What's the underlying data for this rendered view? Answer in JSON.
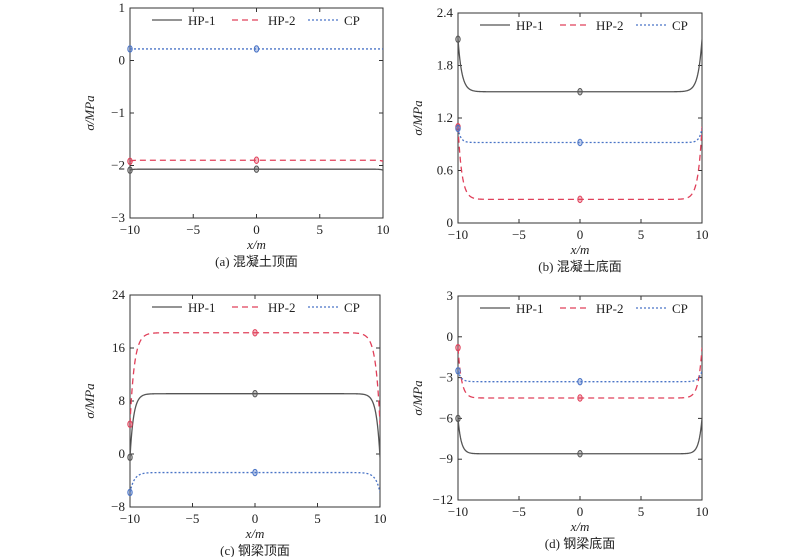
{
  "chart_data": [
    {
      "type": "line",
      "title": "(a) 混凝土顶面",
      "xlabel": "x/m",
      "ylabel": "σ/MPa",
      "xlim": [
        -10,
        10
      ],
      "ylim": [
        -3,
        1
      ],
      "xticks": [
        -10,
        -5,
        0,
        5,
        10
      ],
      "yticks": [
        -3,
        -2,
        -1,
        0,
        1
      ],
      "xtick_labels": [
        "−10",
        "−5",
        "0",
        "5",
        "10"
      ],
      "ytick_labels": [
        "−3",
        "−2",
        "−1",
        "0",
        "1"
      ],
      "legend": "top, horizontal",
      "series": [
        {
          "name": "HP-1",
          "style": "solid",
          "color": "#555555",
          "center": -2.07,
          "end": -2.09,
          "edge_rise_width": 0.6
        },
        {
          "name": "HP-2",
          "style": "dashed",
          "color": "#e0405a",
          "center": -1.9,
          "end": -1.92,
          "edge_rise_width": 0.6
        },
        {
          "name": "CP",
          "style": "dotted",
          "color": "#4a74c6",
          "center": 0.22,
          "end": 0.22,
          "edge_rise_width": 0.6
        }
      ]
    },
    {
      "type": "line",
      "title": "(b) 混凝土底面",
      "xlabel": "x/m",
      "ylabel": "σ/MPa",
      "xlim": [
        -10,
        10
      ],
      "ylim": [
        0,
        2.4
      ],
      "xticks": [
        -10,
        -5,
        0,
        5,
        10
      ],
      "yticks": [
        0,
        0.6,
        1.2,
        1.8,
        2.4
      ],
      "xtick_labels": [
        "−10",
        "−5",
        "0",
        "5",
        "10"
      ],
      "ytick_labels": [
        "0",
        "0.6",
        "1.2",
        "1.8",
        "2.4"
      ],
      "legend": "top, horizontal",
      "series": [
        {
          "name": "HP-1",
          "style": "solid",
          "color": "#555555",
          "center": 1.5,
          "end": 2.1,
          "edge_rise_width": 1.1
        },
        {
          "name": "HP-2",
          "style": "dashed",
          "color": "#e0405a",
          "center": 0.27,
          "end": 1.1,
          "edge_rise_width": 1.1
        },
        {
          "name": "CP",
          "style": "dotted",
          "color": "#4a74c6",
          "center": 0.92,
          "end": 1.08,
          "edge_rise_width": 0.8
        }
      ]
    },
    {
      "type": "line",
      "title": "(c) 钢梁顶面",
      "xlabel": "x/m",
      "ylabel": "σ/MPa",
      "xlim": [
        -10,
        10
      ],
      "ylim": [
        -8,
        24
      ],
      "xticks": [
        -10,
        -5,
        0,
        5,
        10
      ],
      "yticks": [
        -8,
        0,
        8,
        16,
        24
      ],
      "xtick_labels": [
        "−10",
        "−5",
        "0",
        "5",
        "10"
      ],
      "ytick_labels": [
        "−8",
        "0",
        "8",
        "16",
        "24"
      ],
      "legend": "top, horizontal",
      "series": [
        {
          "name": "HP-1",
          "style": "solid",
          "color": "#555555",
          "center": 9.1,
          "end": -0.5,
          "edge_rise_width": 1.0
        },
        {
          "name": "HP-2",
          "style": "dashed",
          "color": "#e0405a",
          "center": 18.3,
          "end": 4.5,
          "edge_rise_width": 1.2
        },
        {
          "name": "CP",
          "style": "dotted",
          "color": "#4a74c6",
          "center": -2.8,
          "end": -5.8,
          "edge_rise_width": 1.2
        }
      ]
    },
    {
      "type": "line",
      "title": "(d) 钢梁底面",
      "xlabel": "x/m",
      "ylabel": "σ/MPa",
      "xlim": [
        -10,
        10
      ],
      "ylim": [
        -12,
        3
      ],
      "xticks": [
        -10,
        -5,
        0,
        5,
        10
      ],
      "yticks": [
        -12,
        -9,
        -6,
        -3,
        0,
        3
      ],
      "xtick_labels": [
        "−10",
        "−5",
        "0",
        "5",
        "10"
      ],
      "ytick_labels": [
        "−12",
        "−9",
        "−6",
        "−3",
        "0",
        "3"
      ],
      "legend": "top, horizontal",
      "series": [
        {
          "name": "HP-1",
          "style": "solid",
          "color": "#555555",
          "center": -8.6,
          "end": -6.0,
          "edge_rise_width": 0.9
        },
        {
          "name": "HP-2",
          "style": "dashed",
          "color": "#e0405a",
          "center": -4.5,
          "end": -0.8,
          "edge_rise_width": 1.0
        },
        {
          "name": "CP",
          "style": "dotted",
          "color": "#4a74c6",
          "center": -3.3,
          "end": -2.5,
          "edge_rise_width": 0.9
        }
      ]
    }
  ]
}
